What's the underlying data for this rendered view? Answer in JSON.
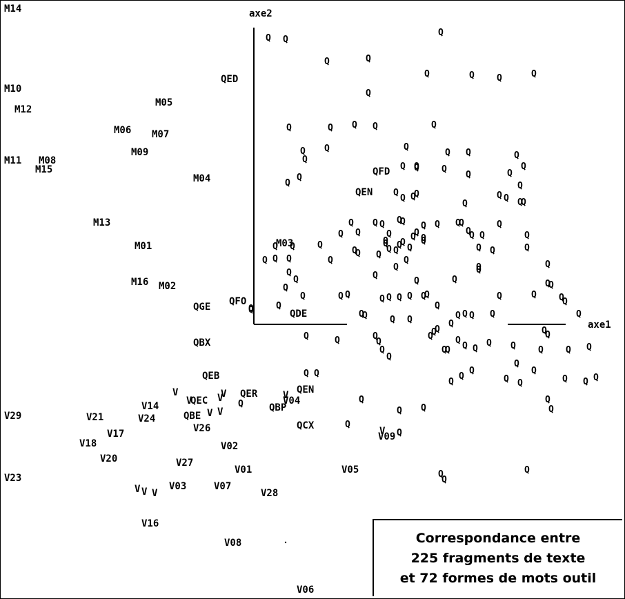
{
  "chart_data": {
    "type": "scatter",
    "title": "Correspondance entre 225 fragments de texte et 72 formes de mots outil",
    "title_lines": [
      "Correspondance entre",
      "225 fragments de texte",
      "et 72 formes de mots outil"
    ],
    "xlabel": "axe1",
    "ylabel": "axe2",
    "grid": false,
    "legend": "none",
    "labeled_points": [
      {
        "label": "M14",
        "x": -362,
        "y": 453
      },
      {
        "label": "M10",
        "x": -362,
        "y": 337
      },
      {
        "label": "M12",
        "x": -347,
        "y": 307
      },
      {
        "label": "M11",
        "x": -362,
        "y": 233
      },
      {
        "label": "M08",
        "x": -312,
        "y": 233
      },
      {
        "label": "M15",
        "x": -317,
        "y": 220
      },
      {
        "label": "M05",
        "x": -143,
        "y": 317
      },
      {
        "label": "M06",
        "x": -203,
        "y": 277
      },
      {
        "label": "M07",
        "x": -148,
        "y": 271
      },
      {
        "label": "M09",
        "x": -178,
        "y": 245
      },
      {
        "label": "M04",
        "x": -88,
        "y": 207
      },
      {
        "label": "M13",
        "x": -233,
        "y": 143
      },
      {
        "label": "M01",
        "x": -173,
        "y": 109
      },
      {
        "label": "M16",
        "x": -178,
        "y": 57
      },
      {
        "label": "M02",
        "x": -138,
        "y": 51
      },
      {
        "label": "M03",
        "x": 32,
        "y": 113
      },
      {
        "label": "QGE",
        "x": -88,
        "y": 21
      },
      {
        "label": "QFO",
        "x": -36,
        "y": 29
      },
      {
        "label": "QDE",
        "x": 52,
        "y": 11
      },
      {
        "label": "QBX",
        "x": -88,
        "y": -31
      },
      {
        "label": "QED",
        "x": -48,
        "y": 351
      },
      {
        "label": "QFD",
        "x": 172,
        "y": 217
      },
      {
        "label": "QEN",
        "x": 147,
        "y": 187
      },
      {
        "label": "QEB",
        "x": -75,
        "y": -79
      },
      {
        "label": "QEC",
        "x": -92,
        "y": -115
      },
      {
        "label": "QER",
        "x": -20,
        "y": -105
      },
      {
        "label": "QEN",
        "x": 62,
        "y": -99
      },
      {
        "label": "QBP",
        "x": 22,
        "y": -125
      },
      {
        "label": "QBE",
        "x": -102,
        "y": -137
      },
      {
        "label": "QCX",
        "x": 62,
        "y": -151
      },
      {
        "label": "V29",
        "x": -362,
        "y": -137
      },
      {
        "label": "V21",
        "x": -243,
        "y": -139
      },
      {
        "label": "V14",
        "x": -163,
        "y": -123
      },
      {
        "label": "V24",
        "x": -168,
        "y": -141
      },
      {
        "label": "V17",
        "x": -213,
        "y": -163
      },
      {
        "label": "V18",
        "x": -253,
        "y": -177
      },
      {
        "label": "V20",
        "x": -223,
        "y": -199
      },
      {
        "label": "V23",
        "x": -362,
        "y": -227
      },
      {
        "label": "V26",
        "x": -88,
        "y": -155
      },
      {
        "label": "V02",
        "x": -48,
        "y": -181
      },
      {
        "label": "V27",
        "x": -113,
        "y": -205
      },
      {
        "label": "V01",
        "x": -28,
        "y": -215
      },
      {
        "label": "V03",
        "x": -123,
        "y": -239
      },
      {
        "label": "V07",
        "x": -58,
        "y": -239
      },
      {
        "label": "V28",
        "x": 10,
        "y": -249
      },
      {
        "label": "V16",
        "x": -163,
        "y": -293
      },
      {
        "label": "V08",
        "x": -43,
        "y": -321
      },
      {
        "label": "V05",
        "x": 127,
        "y": -215
      },
      {
        "label": "V04",
        "x": 42,
        "y": -115
      },
      {
        "label": "V09",
        "x": 180,
        "y": -167
      },
      {
        "label": "V06",
        "x": 62,
        "y": -389
      },
      {
        "label": "V",
        "x": -118,
        "y": -103
      },
      {
        "label": "V",
        "x": -98,
        "y": -115
      },
      {
        "label": "V",
        "x": -53,
        "y": -111
      },
      {
        "label": "V",
        "x": -48,
        "y": -105
      },
      {
        "label": "V",
        "x": -68,
        "y": -133
      },
      {
        "label": "V",
        "x": -53,
        "y": -131
      },
      {
        "label": "V",
        "x": 42,
        "y": -107
      },
      {
        "label": "V",
        "x": 182,
        "y": -159
      },
      {
        "label": "V",
        "x": -173,
        "y": -243
      },
      {
        "label": "V",
        "x": -163,
        "y": -247
      },
      {
        "label": "V",
        "x": -148,
        "y": -249
      }
    ],
    "q_label": "Q",
    "q_points": [
      [
        17,
        411
      ],
      [
        42,
        409
      ],
      [
        267,
        419
      ],
      [
        102,
        377
      ],
      [
        162,
        381
      ],
      [
        247,
        359
      ],
      [
        312,
        357
      ],
      [
        352,
        353
      ],
      [
        402,
        359
      ],
      [
        162,
        331
      ],
      [
        47,
        281
      ],
      [
        107,
        281
      ],
      [
        142,
        285
      ],
      [
        172,
        283
      ],
      [
        257,
        285
      ],
      [
        67,
        247
      ],
      [
        102,
        251
      ],
      [
        217,
        253
      ],
      [
        277,
        245
      ],
      [
        307,
        245
      ],
      [
        377,
        241
      ],
      [
        367,
        215
      ],
      [
        387,
        225
      ],
      [
        70,
        235
      ],
      [
        62,
        209
      ],
      [
        45,
        201
      ],
      [
        232,
        223
      ],
      [
        272,
        221
      ],
      [
        307,
        213
      ],
      [
        212,
        225
      ],
      [
        232,
        225
      ],
      [
        232,
        185
      ],
      [
        202,
        187
      ],
      [
        212,
        179
      ],
      [
        227,
        181
      ],
      [
        302,
        171
      ],
      [
        382,
        197
      ],
      [
        382,
        173
      ],
      [
        352,
        183
      ],
      [
        362,
        179
      ],
      [
        387,
        173
      ],
      [
        137,
        143
      ],
      [
        172,
        143
      ],
      [
        182,
        141
      ],
      [
        212,
        145
      ],
      [
        292,
        143
      ],
      [
        297,
        143
      ],
      [
        207,
        147
      ],
      [
        262,
        141
      ],
      [
        242,
        139
      ],
      [
        232,
        129
      ],
      [
        307,
        131
      ],
      [
        312,
        125
      ],
      [
        327,
        125
      ],
      [
        352,
        141
      ],
      [
        392,
        125
      ],
      [
        122,
        127
      ],
      [
        147,
        129
      ],
      [
        192,
        127
      ],
      [
        227,
        123
      ],
      [
        242,
        121
      ],
      [
        242,
        117
      ],
      [
        187,
        117
      ],
      [
        207,
        111
      ],
      [
        212,
        115
      ],
      [
        222,
        107
      ],
      [
        187,
        113
      ],
      [
        192,
        105
      ],
      [
        27,
        109
      ],
      [
        92,
        111
      ],
      [
        52,
        109
      ],
      [
        12,
        89
      ],
      [
        27,
        91
      ],
      [
        47,
        91
      ],
      [
        107,
        89
      ],
      [
        177,
        97
      ],
      [
        142,
        103
      ],
      [
        147,
        99
      ],
      [
        202,
        103
      ],
      [
        217,
        89
      ],
      [
        202,
        79
      ],
      [
        322,
        107
      ],
      [
        342,
        103
      ],
      [
        392,
        107
      ],
      [
        422,
        83
      ],
      [
        322,
        75
      ],
      [
        322,
        79
      ],
      [
        172,
        67
      ],
      [
        232,
        59
      ],
      [
        287,
        61
      ],
      [
        47,
        71
      ],
      [
        57,
        61
      ],
      [
        42,
        49
      ],
      [
        67,
        37
      ],
      [
        122,
        37
      ],
      [
        132,
        39
      ],
      [
        182,
        33
      ],
      [
        192,
        35
      ],
      [
        207,
        35
      ],
      [
        222,
        37
      ],
      [
        242,
        37
      ],
      [
        247,
        39
      ],
      [
        352,
        37
      ],
      [
        402,
        39
      ],
      [
        422,
        55
      ],
      [
        427,
        53
      ],
      [
        442,
        35
      ],
      [
        447,
        29
      ],
      [
        262,
        23
      ],
      [
        292,
        9
      ],
      [
        302,
        11
      ],
      [
        312,
        9
      ],
      [
        342,
        11
      ],
      [
        467,
        11
      ],
      [
        -8,
        19
      ],
      [
        -8,
        17
      ],
      [
        32,
        23
      ],
      [
        72,
        -21
      ],
      [
        117,
        -27
      ],
      [
        152,
        11
      ],
      [
        157,
        9
      ],
      [
        172,
        -21
      ],
      [
        177,
        -29
      ],
      [
        182,
        -41
      ],
      [
        197,
        3
      ],
      [
        222,
        3
      ],
      [
        252,
        -21
      ],
      [
        257,
        -15
      ],
      [
        262,
        -11
      ],
      [
        282,
        -3
      ],
      [
        272,
        -41
      ],
      [
        277,
        -41
      ],
      [
        292,
        -27
      ],
      [
        302,
        -35
      ],
      [
        317,
        -39
      ],
      [
        337,
        -31
      ],
      [
        417,
        -13
      ],
      [
        422,
        -19
      ],
      [
        372,
        -35
      ],
      [
        412,
        -41
      ],
      [
        452,
        -41
      ],
      [
        482,
        -37
      ],
      [
        192,
        -51
      ],
      [
        377,
        -61
      ],
      [
        402,
        -71
      ],
      [
        492,
        -81
      ],
      [
        447,
        -83
      ],
      [
        477,
        -87
      ],
      [
        282,
        -87
      ],
      [
        297,
        -79
      ],
      [
        312,
        -71
      ],
      [
        362,
        -83
      ],
      [
        382,
        -89
      ],
      [
        422,
        -113
      ],
      [
        427,
        -127
      ],
      [
        242,
        -125
      ],
      [
        207,
        -129
      ],
      [
        152,
        -113
      ],
      [
        207,
        -161
      ],
      [
        132,
        -149
      ],
      [
        -23,
        -119
      ],
      [
        267,
        -221
      ],
      [
        272,
        -229
      ],
      [
        392,
        -215
      ],
      [
        72,
        -75
      ],
      [
        87,
        -75
      ]
    ]
  }
}
